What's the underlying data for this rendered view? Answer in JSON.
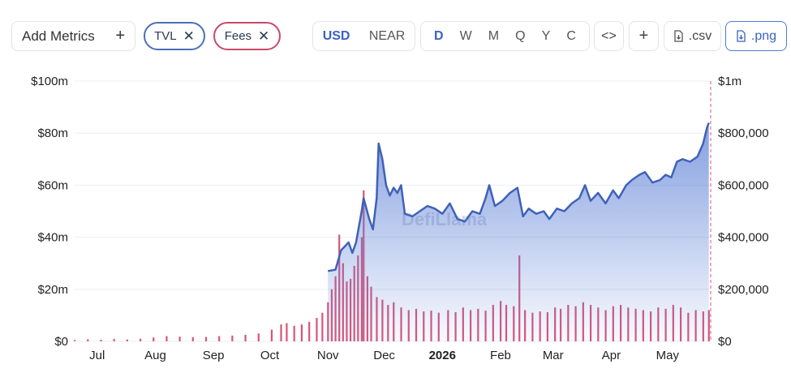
{
  "toolbar": {
    "add_metrics_label": "Add Metrics",
    "add_metrics_icon": "+",
    "metric_pills": [
      {
        "label": "TVL",
        "color": "#4a6fb8"
      },
      {
        "label": "Fees",
        "color": "#c84a6a"
      }
    ],
    "currency_options": [
      "USD",
      "NEAR"
    ],
    "currency_selected": "USD",
    "period_options": [
      "D",
      "W",
      "M",
      "Q",
      "Y",
      "C"
    ],
    "period_selected": "D",
    "embed_label": "<>",
    "plus_label": "+",
    "csv_label": ".csv",
    "png_label": ".png"
  },
  "watermark": "DefiLlama",
  "chart_data": {
    "type": "area+bar",
    "x_tick_labels": [
      "Jul",
      "Aug",
      "Sep",
      "Oct",
      "Nov",
      "Dec",
      "2026",
      "Feb",
      "Mar",
      "Apr",
      "May"
    ],
    "y_left_ticks": [
      "$0",
      "$20m",
      "$40m",
      "$60m",
      "$80m",
      "$100m"
    ],
    "y_right_ticks": [
      "$0",
      "$200,000",
      "$400,000",
      "$600,000",
      "$800,000",
      "$1m"
    ],
    "ylim_left": [
      0,
      100000000
    ],
    "ylim_right": [
      0,
      1000000
    ],
    "series": [
      {
        "name": "TVL",
        "axis": "left",
        "kind": "area",
        "color": "#3f62b8",
        "points": [
          [
            "2025-11-01",
            27000000
          ],
          [
            "2025-11-05",
            27500000
          ],
          [
            "2025-11-08",
            35000000
          ],
          [
            "2025-11-12",
            38000000
          ],
          [
            "2025-11-14",
            34000000
          ],
          [
            "2025-11-16",
            38000000
          ],
          [
            "2025-11-19",
            50000000
          ],
          [
            "2025-11-20",
            55000000
          ],
          [
            "2025-11-23",
            47000000
          ],
          [
            "2025-11-25",
            43000000
          ],
          [
            "2025-11-27",
            55000000
          ],
          [
            "2025-11-28",
            76000000
          ],
          [
            "2025-11-30",
            70000000
          ],
          [
            "2025-12-02",
            60000000
          ],
          [
            "2025-12-04",
            56000000
          ],
          [
            "2025-12-06",
            59000000
          ],
          [
            "2025-12-08",
            57000000
          ],
          [
            "2025-12-10",
            60000000
          ],
          [
            "2025-12-12",
            49000000
          ],
          [
            "2025-12-16",
            48000000
          ],
          [
            "2025-12-20",
            50000000
          ],
          [
            "2025-12-24",
            52000000
          ],
          [
            "2025-12-28",
            51000000
          ],
          [
            "2026-01-01",
            49000000
          ],
          [
            "2026-01-05",
            53000000
          ],
          [
            "2026-01-09",
            47000000
          ],
          [
            "2026-01-13",
            46000000
          ],
          [
            "2026-01-17",
            50000000
          ],
          [
            "2026-01-21",
            49000000
          ],
          [
            "2026-01-24",
            55000000
          ],
          [
            "2026-01-26",
            60000000
          ],
          [
            "2026-01-29",
            52000000
          ],
          [
            "2026-02-02",
            54000000
          ],
          [
            "2026-02-06",
            57000000
          ],
          [
            "2026-02-10",
            59000000
          ],
          [
            "2026-02-13",
            48000000
          ],
          [
            "2026-02-16",
            51000000
          ],
          [
            "2026-02-20",
            49000000
          ],
          [
            "2026-02-24",
            50000000
          ],
          [
            "2026-02-27",
            47000000
          ],
          [
            "2026-03-03",
            51000000
          ],
          [
            "2026-03-07",
            50000000
          ],
          [
            "2026-03-11",
            53000000
          ],
          [
            "2026-03-15",
            55000000
          ],
          [
            "2026-03-18",
            60000000
          ],
          [
            "2026-03-21",
            54000000
          ],
          [
            "2026-03-25",
            57000000
          ],
          [
            "2026-03-29",
            53000000
          ],
          [
            "2026-04-02",
            58000000
          ],
          [
            "2026-04-05",
            55000000
          ],
          [
            "2026-04-09",
            60000000
          ],
          [
            "2026-04-12",
            62000000
          ],
          [
            "2026-04-16",
            64000000
          ],
          [
            "2026-04-19",
            65000000
          ],
          [
            "2026-04-23",
            61000000
          ],
          [
            "2026-04-27",
            62000000
          ],
          [
            "2026-04-30",
            64000000
          ],
          [
            "2026-05-03",
            63000000
          ],
          [
            "2026-05-06",
            69000000
          ],
          [
            "2026-05-09",
            70000000
          ],
          [
            "2026-05-13",
            69000000
          ],
          [
            "2026-05-17",
            71000000
          ],
          [
            "2026-05-20",
            76000000
          ],
          [
            "2026-05-22",
            82000000
          ],
          [
            "2026-05-23",
            84000000
          ]
        ]
      },
      {
        "name": "Fees",
        "axis": "right",
        "kind": "bar",
        "color": "#d7557a",
        "points": [
          [
            "2025-06-19",
            5000
          ],
          [
            "2025-06-26",
            8000
          ],
          [
            "2025-07-03",
            6000
          ],
          [
            "2025-07-10",
            9000
          ],
          [
            "2025-07-17",
            7000
          ],
          [
            "2025-07-24",
            10000
          ],
          [
            "2025-07-31",
            15000
          ],
          [
            "2025-08-07",
            20000
          ],
          [
            "2025-08-14",
            18000
          ],
          [
            "2025-08-21",
            16000
          ],
          [
            "2025-08-28",
            17000
          ],
          [
            "2025-09-04",
            20000
          ],
          [
            "2025-09-11",
            22000
          ],
          [
            "2025-09-18",
            25000
          ],
          [
            "2025-09-25",
            30000
          ],
          [
            "2025-10-02",
            45000
          ],
          [
            "2025-10-07",
            65000
          ],
          [
            "2025-10-10",
            70000
          ],
          [
            "2025-10-14",
            60000
          ],
          [
            "2025-10-18",
            65000
          ],
          [
            "2025-10-22",
            75000
          ],
          [
            "2025-10-26",
            90000
          ],
          [
            "2025-10-29",
            110000
          ],
          [
            "2025-11-01",
            150000
          ],
          [
            "2025-11-03",
            200000
          ],
          [
            "2025-11-05",
            250000
          ],
          [
            "2025-11-07",
            410000
          ],
          [
            "2025-11-09",
            300000
          ],
          [
            "2025-11-11",
            230000
          ],
          [
            "2025-11-13",
            240000
          ],
          [
            "2025-11-15",
            290000
          ],
          [
            "2025-11-17",
            330000
          ],
          [
            "2025-11-19",
            400000
          ],
          [
            "2025-11-20",
            580000
          ],
          [
            "2025-11-22",
            250000
          ],
          [
            "2025-11-24",
            210000
          ],
          [
            "2025-11-27",
            170000
          ],
          [
            "2025-11-30",
            160000
          ],
          [
            "2025-12-03",
            140000
          ],
          [
            "2025-12-06",
            150000
          ],
          [
            "2025-12-10",
            130000
          ],
          [
            "2025-12-14",
            120000
          ],
          [
            "2025-12-18",
            125000
          ],
          [
            "2025-12-22",
            115000
          ],
          [
            "2025-12-26",
            118000
          ],
          [
            "2025-12-30",
            110000
          ],
          [
            "2026-01-04",
            120000
          ],
          [
            "2026-01-08",
            112000
          ],
          [
            "2026-01-12",
            130000
          ],
          [
            "2026-01-16",
            120000
          ],
          [
            "2026-01-20",
            125000
          ],
          [
            "2026-01-24",
            118000
          ],
          [
            "2026-01-28",
            140000
          ],
          [
            "2026-02-01",
            155000
          ],
          [
            "2026-02-04",
            140000
          ],
          [
            "2026-02-08",
            135000
          ],
          [
            "2026-02-11",
            330000
          ],
          [
            "2026-02-14",
            120000
          ],
          [
            "2026-02-18",
            110000
          ],
          [
            "2026-02-22",
            115000
          ],
          [
            "2026-02-26",
            112000
          ],
          [
            "2026-03-02",
            130000
          ],
          [
            "2026-03-05",
            125000
          ],
          [
            "2026-03-09",
            140000
          ],
          [
            "2026-03-13",
            135000
          ],
          [
            "2026-03-17",
            150000
          ],
          [
            "2026-03-21",
            140000
          ],
          [
            "2026-03-25",
            130000
          ],
          [
            "2026-03-29",
            120000
          ],
          [
            "2026-04-02",
            135000
          ],
          [
            "2026-04-06",
            140000
          ],
          [
            "2026-04-10",
            130000
          ],
          [
            "2026-04-14",
            125000
          ],
          [
            "2026-04-18",
            120000
          ],
          [
            "2026-04-22",
            115000
          ],
          [
            "2026-04-26",
            130000
          ],
          [
            "2026-04-30",
            125000
          ],
          [
            "2026-05-04",
            140000
          ],
          [
            "2026-05-08",
            130000
          ],
          [
            "2026-05-12",
            110000
          ],
          [
            "2026-05-16",
            120000
          ],
          [
            "2026-05-20",
            115000
          ],
          [
            "2026-05-23",
            120000
          ]
        ]
      }
    ],
    "x_range": [
      "2025-06-19",
      "2026-05-24"
    ],
    "grid": true,
    "legend": "none"
  }
}
